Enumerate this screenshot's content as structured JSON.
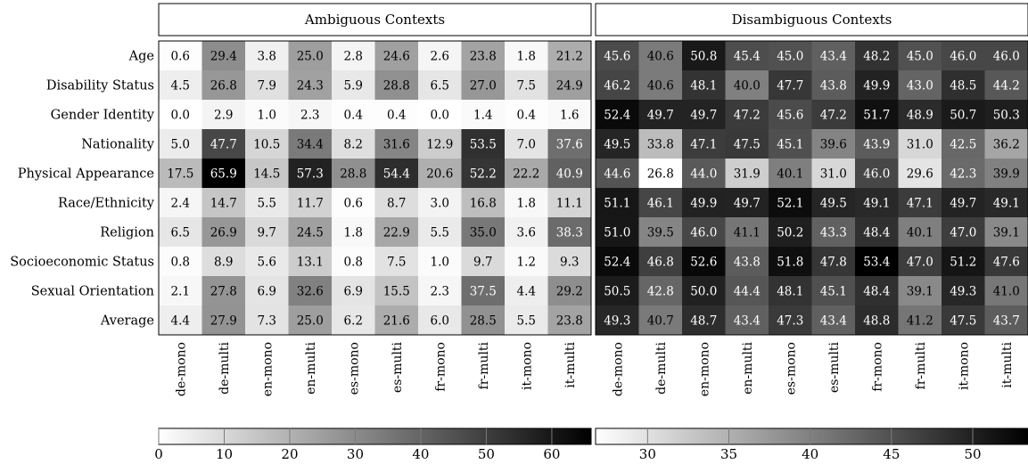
{
  "chart_data": [
    {
      "type": "heatmap",
      "title": "Ambiguous Contexts",
      "rows": [
        "Age",
        "Disability Status",
        "Gender Identity",
        "Nationality",
        "Physical Appearance",
        "Race/Ethnicity",
        "Religion",
        "Socioeconomic Status",
        "Sexual Orientation",
        "Average"
      ],
      "columns": [
        "de-mono",
        "de-multi",
        "en-mono",
        "en-multi",
        "es-mono",
        "es-multi",
        "fr-mono",
        "fr-multi",
        "it-mono",
        "it-multi"
      ],
      "values": [
        [
          0.6,
          29.4,
          3.8,
          25.0,
          2.8,
          24.6,
          2.6,
          23.8,
          1.8,
          21.2
        ],
        [
          4.5,
          26.8,
          7.9,
          24.3,
          5.9,
          28.8,
          6.5,
          27.0,
          7.5,
          24.9
        ],
        [
          0.0,
          2.9,
          1.0,
          2.3,
          0.4,
          0.4,
          0.0,
          1.4,
          0.4,
          1.6
        ],
        [
          5.0,
          47.7,
          10.5,
          34.4,
          8.2,
          31.6,
          12.9,
          53.5,
          7.0,
          37.6
        ],
        [
          17.5,
          65.9,
          14.5,
          57.3,
          28.8,
          54.4,
          20.6,
          52.2,
          22.2,
          40.9
        ],
        [
          2.4,
          14.7,
          5.5,
          11.7,
          0.6,
          8.7,
          3.0,
          16.8,
          1.8,
          11.1
        ],
        [
          6.5,
          26.9,
          9.7,
          24.5,
          1.8,
          22.9,
          5.5,
          35.0,
          3.6,
          38.3
        ],
        [
          0.8,
          8.9,
          5.6,
          13.1,
          0.8,
          7.5,
          1.0,
          9.7,
          1.2,
          9.3
        ],
        [
          2.1,
          27.8,
          6.9,
          32.6,
          6.9,
          15.5,
          2.3,
          37.5,
          4.4,
          29.2
        ],
        [
          4.4,
          27.9,
          7.3,
          25.0,
          6.2,
          21.6,
          6.0,
          28.5,
          5.5,
          23.8
        ]
      ],
      "colorbar": {
        "min": 0,
        "max": 66,
        "ticks": [
          0,
          10,
          20,
          30,
          40,
          50,
          60
        ]
      },
      "colormap": "greys"
    },
    {
      "type": "heatmap",
      "title": "Disambiguous Contexts",
      "rows": [
        "Age",
        "Disability Status",
        "Gender Identity",
        "Nationality",
        "Physical Appearance",
        "Race/Ethnicity",
        "Religion",
        "Socioeconomic Status",
        "Sexual Orientation",
        "Average"
      ],
      "columns": [
        "de-mono",
        "de-multi",
        "en-mono",
        "en-multi",
        "es-mono",
        "es-multi",
        "fr-mono",
        "fr-multi",
        "it-mono",
        "it-multi"
      ],
      "values": [
        [
          45.6,
          40.6,
          50.8,
          45.4,
          45.0,
          43.4,
          48.2,
          45.0,
          46.0,
          46.0
        ],
        [
          46.2,
          40.6,
          48.1,
          40.0,
          47.7,
          43.8,
          49.9,
          43.0,
          48.5,
          44.2
        ],
        [
          52.4,
          49.7,
          49.7,
          47.2,
          45.6,
          47.2,
          51.7,
          48.9,
          50.7,
          50.3
        ],
        [
          49.5,
          33.8,
          47.1,
          47.5,
          45.1,
          39.6,
          43.9,
          31.0,
          42.5,
          36.2
        ],
        [
          44.6,
          26.8,
          44.0,
          31.9,
          40.1,
          31.0,
          46.0,
          29.6,
          42.3,
          39.9
        ],
        [
          51.1,
          46.1,
          49.9,
          49.7,
          52.1,
          49.5,
          49.1,
          47.1,
          49.7,
          49.1
        ],
        [
          51.0,
          39.5,
          46.0,
          41.1,
          50.2,
          43.3,
          48.4,
          40.1,
          47.0,
          39.1
        ],
        [
          52.4,
          46.8,
          52.6,
          43.8,
          51.8,
          47.8,
          53.4,
          47.0,
          51.2,
          47.6
        ],
        [
          50.5,
          42.8,
          50.0,
          44.4,
          48.1,
          45.1,
          48.4,
          39.1,
          49.3,
          41.0
        ],
        [
          49.3,
          40.7,
          48.7,
          43.4,
          47.3,
          43.4,
          48.8,
          41.2,
          47.5,
          43.7
        ]
      ],
      "colorbar": {
        "min": 26.8,
        "max": 53.4,
        "ticks": [
          30,
          35,
          40,
          45,
          50
        ]
      },
      "colormap": "greys"
    }
  ]
}
